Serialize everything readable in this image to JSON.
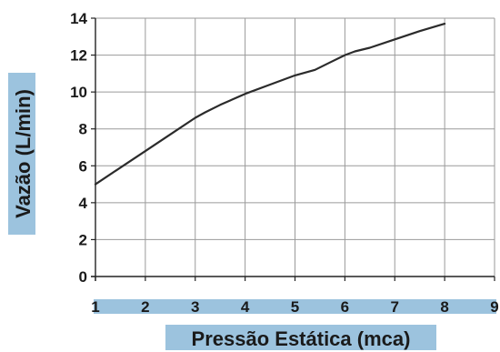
{
  "chart_data": {
    "type": "line",
    "title": "",
    "xlabel": "Pressão Estática (mca)",
    "ylabel": "Vazão (L/min)",
    "xlim": [
      1,
      9
    ],
    "ylim": [
      0,
      14
    ],
    "xticks": [
      "1",
      "2",
      "3",
      "4",
      "5",
      "6",
      "7",
      "8",
      "9"
    ],
    "yticks": [
      "0",
      "2",
      "4",
      "6",
      "8",
      "10",
      "12",
      "14"
    ],
    "grid": true,
    "legend": "none",
    "series": [
      {
        "x": [
          1,
          1.5,
          2,
          2.5,
          3,
          3.2,
          3.5,
          4,
          4.5,
          5,
          5.4,
          5.7,
          6,
          6.2,
          6.5,
          7,
          7.5,
          8
        ],
        "y": [
          5.0,
          5.9,
          6.8,
          7.7,
          8.6,
          8.9,
          9.3,
          9.9,
          10.4,
          10.9,
          11.2,
          11.6,
          12.0,
          12.2,
          12.4,
          12.85,
          13.3,
          13.7
        ]
      }
    ],
    "line_color": "#2b2b2b",
    "grid_color": "#9a9a9a",
    "axis_band_color": "#9cc3de"
  }
}
